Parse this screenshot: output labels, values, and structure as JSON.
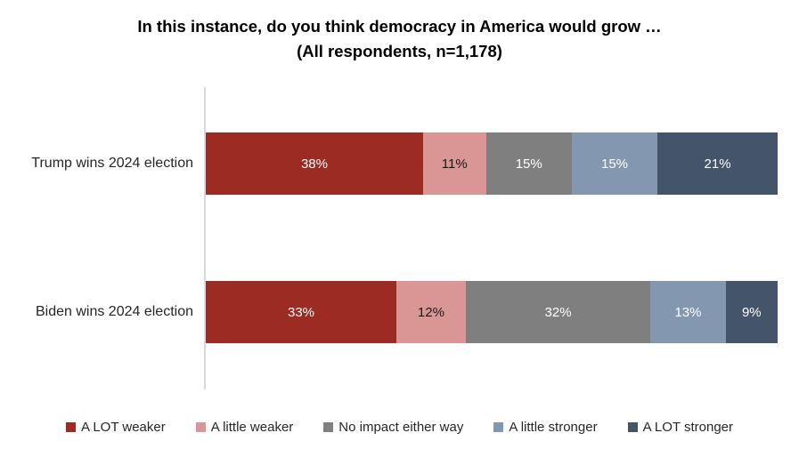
{
  "title": {
    "line1": "In this instance, do you think democracy in America would grow …",
    "line2": "(All respondents, n=1,178)"
  },
  "chart_data": {
    "type": "bar",
    "orientation": "horizontal-stacked",
    "title": "In this instance, do you think democracy in America would grow …",
    "subtitle": "(All respondents, n=1,178)",
    "categories": [
      "Trump wins 2024 election",
      "Biden wins 2024 election"
    ],
    "series": [
      {
        "name": "A LOT weaker",
        "color": "#9B2B23",
        "label_color": "#FFFFFF",
        "values": [
          38,
          33
        ]
      },
      {
        "name": "A little weaker",
        "color": "#D99694",
        "label_color": "#1A1A1A",
        "values": [
          11,
          12
        ]
      },
      {
        "name": "No impact either way",
        "color": "#7F7F7F",
        "label_color": "#FFFFFF",
        "values": [
          15,
          32
        ]
      },
      {
        "name": "A little stronger",
        "color": "#8497B0",
        "label_color": "#FFFFFF",
        "values": [
          15,
          13
        ]
      },
      {
        "name": "A LOT stronger",
        "color": "#44546A",
        "label_color": "#FFFFFF",
        "values": [
          21,
          9
        ]
      }
    ],
    "data_label_format": "{v}%",
    "xlim": [
      0,
      100
    ],
    "grid": false,
    "legend_position": "bottom",
    "axis_line_color": "#D9D9D9",
    "background_color": "#FFFFFF"
  }
}
